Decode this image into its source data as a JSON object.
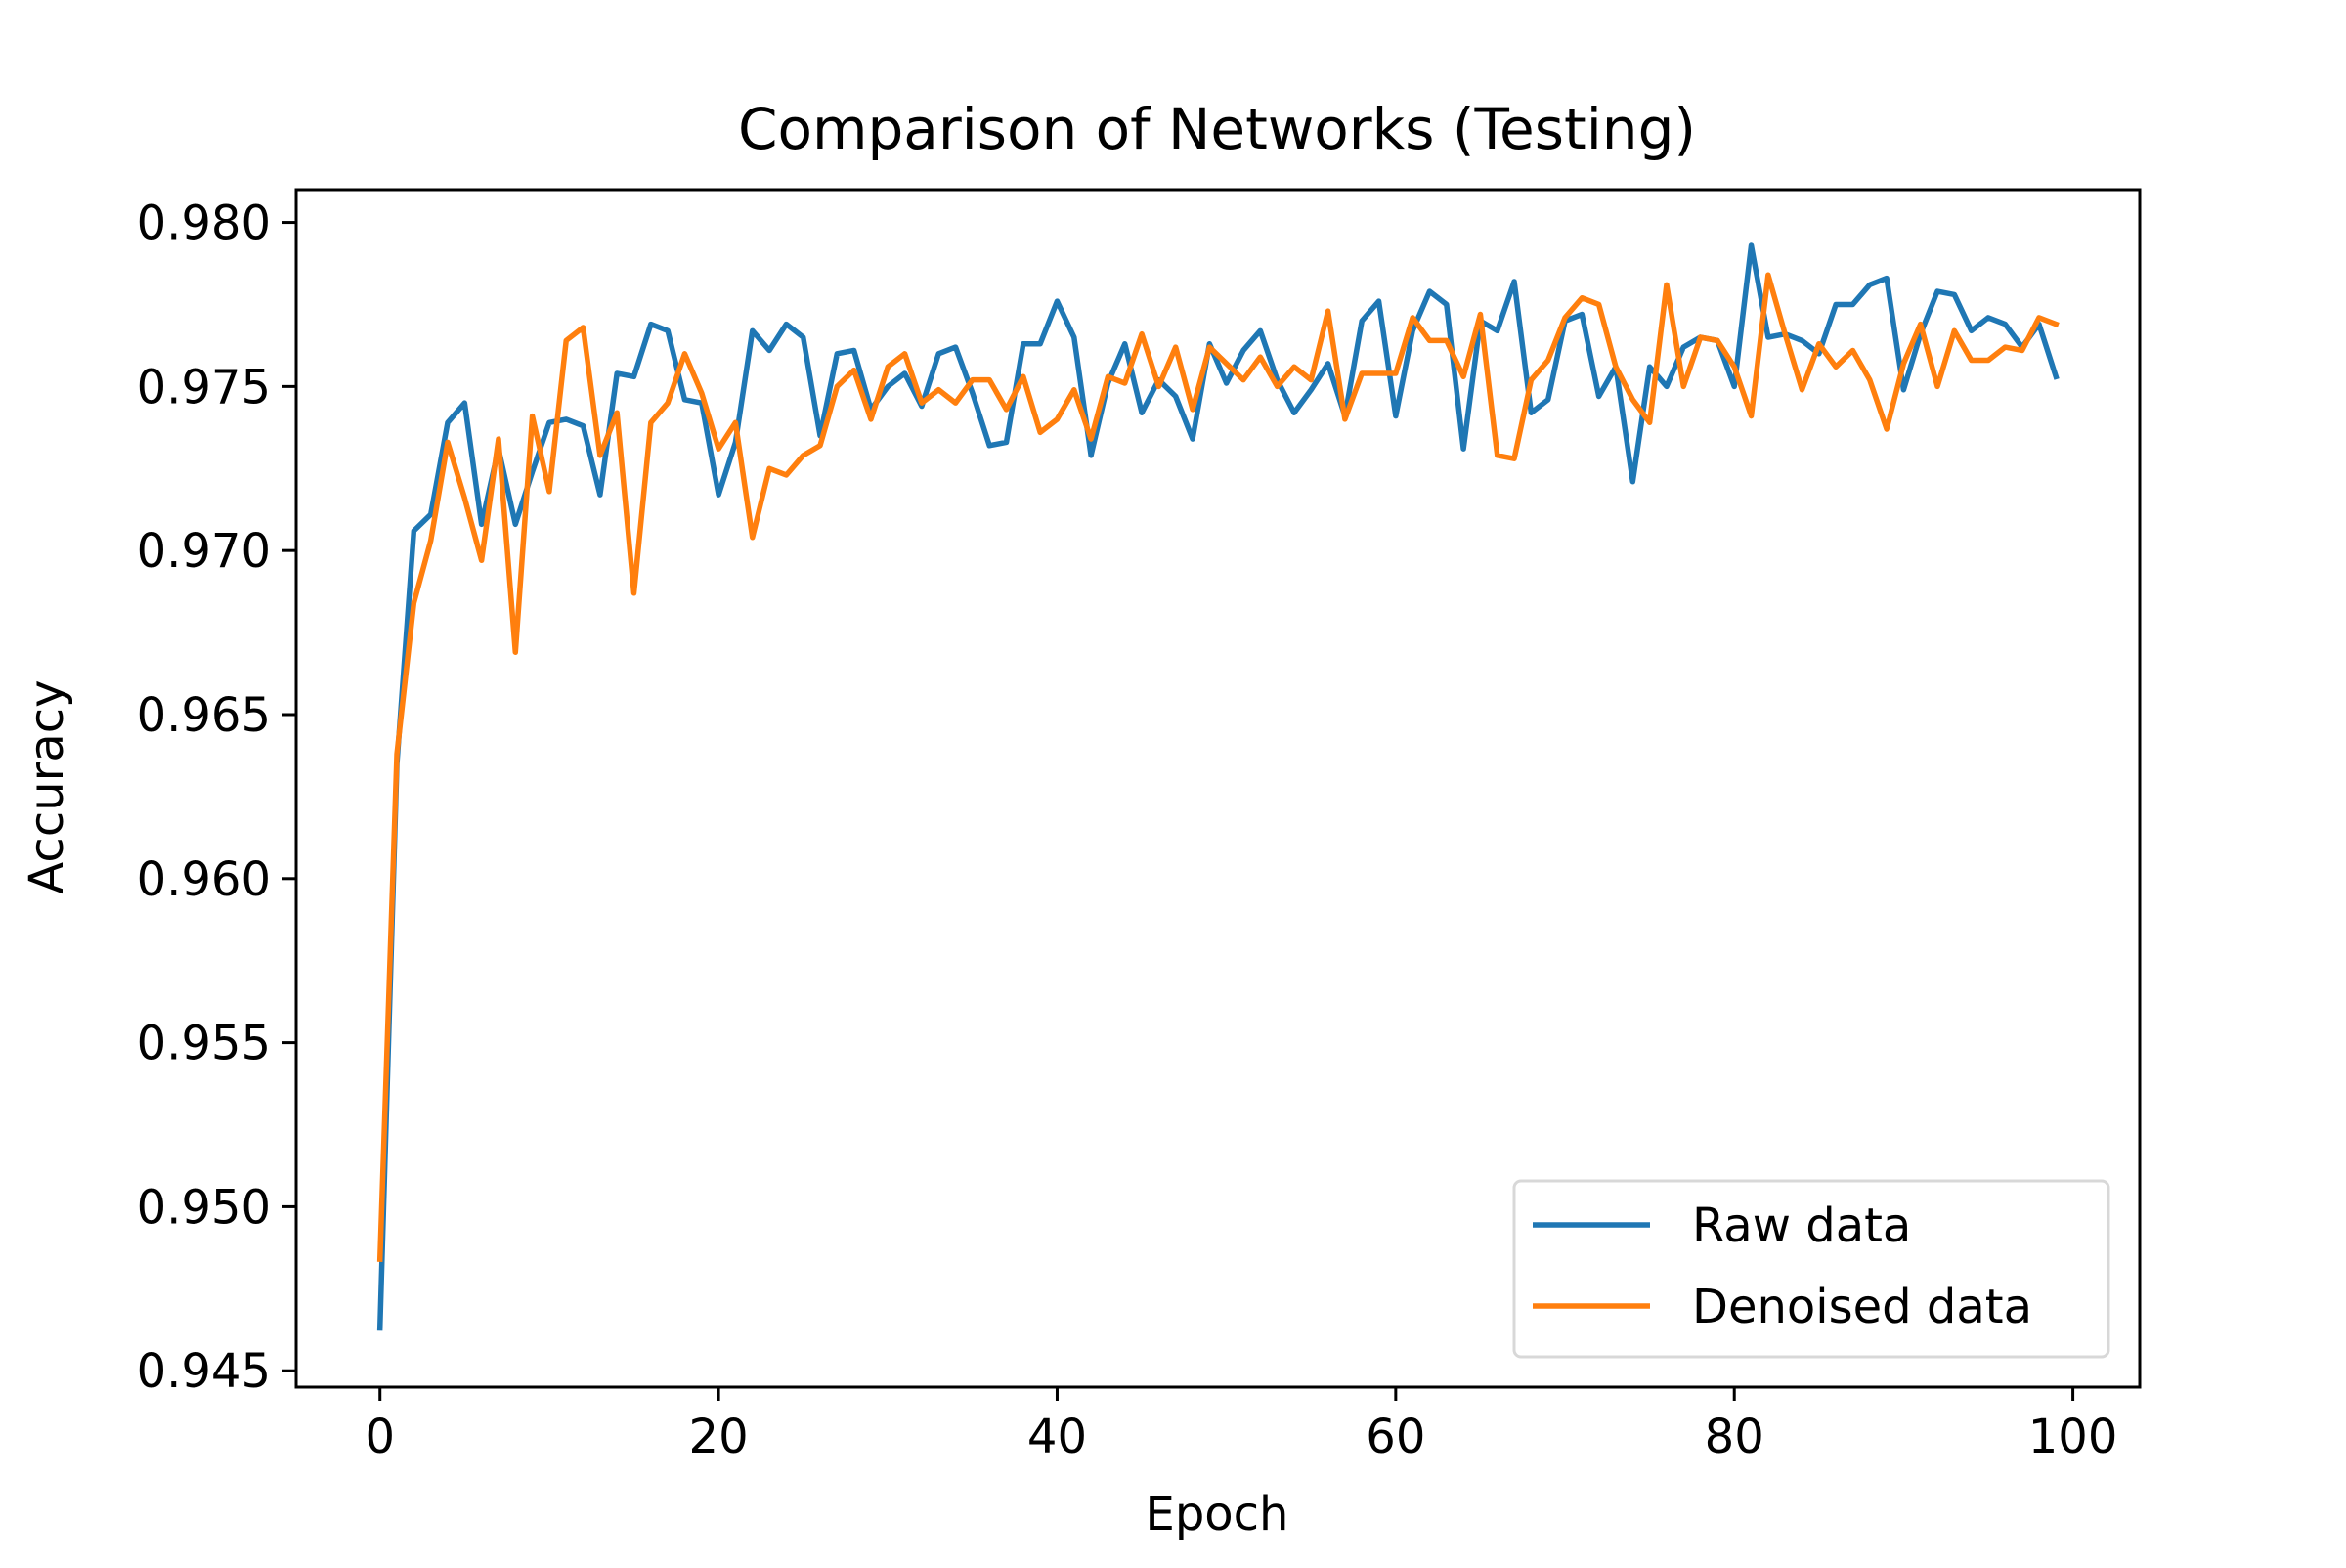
{
  "chart_data": {
    "type": "line",
    "title": "Comparison of Networks (Testing)",
    "xlabel": "Epoch",
    "ylabel": "Accuracy",
    "xlim": [
      -4.95,
      103.95
    ],
    "ylim": [
      0.9445,
      0.981
    ],
    "xticks": [
      0,
      20,
      40,
      60,
      80,
      100
    ],
    "xtick_labels": [
      "0",
      "20",
      "40",
      "60",
      "80",
      "100"
    ],
    "yticks": [
      0.945,
      0.95,
      0.955,
      0.96,
      0.965,
      0.97,
      0.975,
      0.98
    ],
    "ytick_labels": [
      "0.945",
      "0.950",
      "0.955",
      "0.960",
      "0.965",
      "0.970",
      "0.975",
      "0.980"
    ],
    "grid": false,
    "legend": {
      "position": "lower-right"
    },
    "series": [
      {
        "name": "Raw data",
        "color": "#1f77b4",
        "x": [
          0,
          1,
          2,
          3,
          4,
          5,
          6,
          7,
          8,
          9,
          10,
          11,
          12,
          13,
          14,
          15,
          16,
          17,
          18,
          19,
          20,
          21,
          22,
          23,
          24,
          25,
          26,
          27,
          28,
          29,
          30,
          31,
          32,
          33,
          34,
          35,
          36,
          37,
          38,
          39,
          40,
          41,
          42,
          43,
          44,
          45,
          46,
          47,
          48,
          49,
          50,
          51,
          52,
          53,
          54,
          55,
          56,
          57,
          58,
          59,
          60,
          61,
          62,
          63,
          64,
          65,
          66,
          67,
          68,
          69,
          70,
          71,
          72,
          73,
          74,
          75,
          76,
          77,
          78,
          79,
          80,
          81,
          82,
          83,
          84,
          85,
          86,
          87,
          88,
          89,
          90,
          91,
          92,
          93,
          94,
          95,
          96,
          97,
          98,
          99
        ],
        "values": [
          0.9463,
          0.9635,
          0.9706,
          0.9711,
          0.9739,
          0.9745,
          0.9708,
          0.9731,
          0.9708,
          0.9724,
          0.9739,
          0.974,
          0.9738,
          0.9717,
          0.9754,
          0.9753,
          0.9769,
          0.9767,
          0.9746,
          0.9745,
          0.9717,
          0.9733,
          0.9767,
          0.9761,
          0.9769,
          0.9765,
          0.9735,
          0.976,
          0.9761,
          0.9743,
          0.975,
          0.9754,
          0.9744,
          0.976,
          0.9762,
          0.9748,
          0.9732,
          0.9733,
          0.9763,
          0.9763,
          0.9776,
          0.9765,
          0.9729,
          0.9751,
          0.9763,
          0.9742,
          0.9752,
          0.9747,
          0.9734,
          0.9763,
          0.9751,
          0.9761,
          0.9767,
          0.9752,
          0.9742,
          0.9749,
          0.9757,
          0.9741,
          0.977,
          0.9776,
          0.9741,
          0.9767,
          0.9779,
          0.9775,
          0.9731,
          0.977,
          0.9767,
          0.9782,
          0.9742,
          0.9746,
          0.977,
          0.9772,
          0.9747,
          0.9756,
          0.9721,
          0.9756,
          0.975,
          0.9762,
          0.9765,
          0.9764,
          0.975,
          0.9793,
          0.9765,
          0.9766,
          0.9764,
          0.976,
          0.9775,
          0.9775,
          0.9781,
          0.9783,
          0.9749,
          0.9766,
          0.9779,
          0.9778,
          0.9767,
          0.9771,
          0.9769,
          0.9762,
          0.9769,
          0.9753
        ]
      },
      {
        "name": "Denoised data",
        "color": "#ff7f0e",
        "x": [
          0,
          1,
          2,
          3,
          4,
          5,
          6,
          7,
          8,
          9,
          10,
          11,
          12,
          13,
          14,
          15,
          16,
          17,
          18,
          19,
          20,
          21,
          22,
          23,
          24,
          25,
          26,
          27,
          28,
          29,
          30,
          31,
          32,
          33,
          34,
          35,
          36,
          37,
          38,
          39,
          40,
          41,
          42,
          43,
          44,
          45,
          46,
          47,
          48,
          49,
          50,
          51,
          52,
          53,
          54,
          55,
          56,
          57,
          58,
          59,
          60,
          61,
          62,
          63,
          64,
          65,
          66,
          67,
          68,
          69,
          70,
          71,
          72,
          73,
          74,
          75,
          76,
          77,
          78,
          79,
          80,
          81,
          82,
          83,
          84,
          85,
          86,
          87,
          88,
          89,
          90,
          91,
          92,
          93,
          94,
          95,
          96,
          97,
          98,
          99
        ],
        "values": [
          0.9484,
          0.9638,
          0.9684,
          0.9703,
          0.9733,
          0.9716,
          0.9697,
          0.9734,
          0.9669,
          0.9741,
          0.9718,
          0.9764,
          0.9768,
          0.9729,
          0.9742,
          0.9687,
          0.9739,
          0.9745,
          0.976,
          0.9748,
          0.9731,
          0.9739,
          0.9704,
          0.9725,
          0.9723,
          0.9729,
          0.9732,
          0.975,
          0.9755,
          0.974,
          0.9756,
          0.976,
          0.9745,
          0.9749,
          0.9745,
          0.9752,
          0.9752,
          0.9743,
          0.9753,
          0.9736,
          0.974,
          0.9749,
          0.9734,
          0.9753,
          0.9751,
          0.9766,
          0.975,
          0.9762,
          0.9743,
          0.9762,
          0.9757,
          0.9752,
          0.9759,
          0.975,
          0.9756,
          0.9752,
          0.9773,
          0.974,
          0.9754,
          0.9754,
          0.9754,
          0.9771,
          0.9764,
          0.9764,
          0.9753,
          0.9772,
          0.9729,
          0.9728,
          0.9752,
          0.9758,
          0.9771,
          0.9777,
          0.9775,
          0.9756,
          0.9746,
          0.9739,
          0.9781,
          0.975,
          0.9765,
          0.9764,
          0.9756,
          0.9741,
          0.9784,
          0.9766,
          0.9749,
          0.9763,
          0.9756,
          0.9761,
          0.9752,
          0.9737,
          0.9757,
          0.9769,
          0.975,
          0.9767,
          0.9758,
          0.9758,
          0.9762,
          0.9761,
          0.9771,
          0.9769
        ]
      }
    ]
  }
}
